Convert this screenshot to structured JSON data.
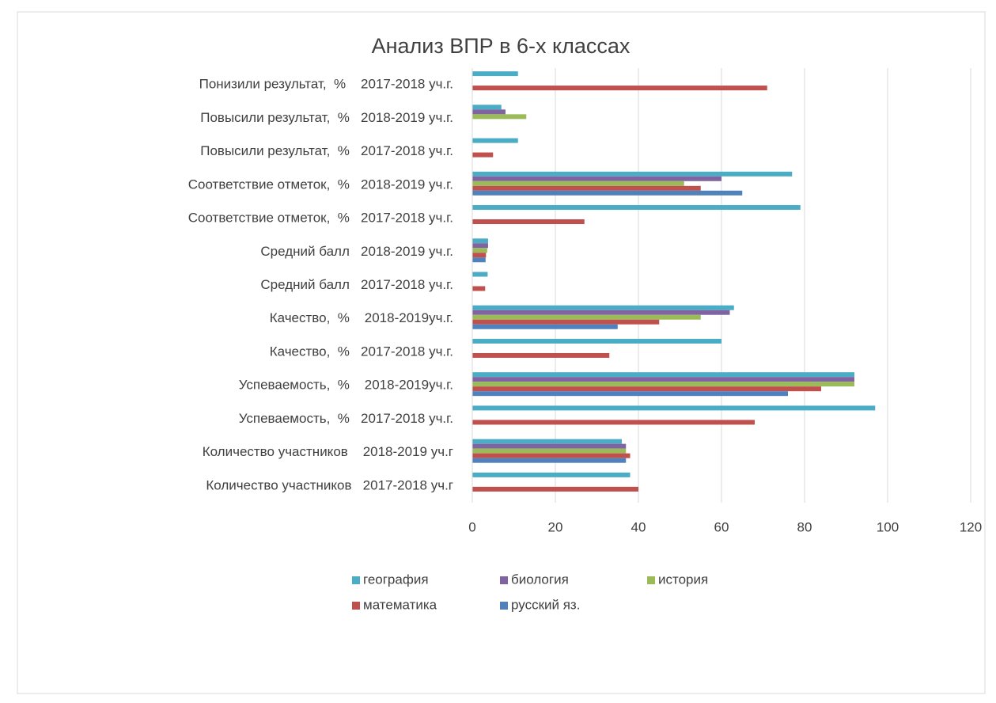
{
  "chart_data": {
    "type": "bar",
    "orientation": "horizontal",
    "title": "Анализ ВПР в 6-х классах",
    "categories": [
      "Понизили результат,  %    2017-2018 уч.г.",
      "Повысили результат,  %   2018-2019 уч.г.",
      "Повысили результат,  %   2017-2018 уч.г.",
      "Соответствие отметок,  %   2018-2019 уч.г.",
      "Соответствие отметок,  %   2017-2018 уч.г.",
      "Средний балл   2018-2019 уч.г.",
      "Средний балл   2017-2018 уч.г.",
      "Качество,  %    2018-2019уч.г.",
      "Качество,  %   2017-2018 уч.г.",
      "Успеваемость,  %    2018-2019уч.г.",
      "Успеваемость,  %   2017-2018 уч.г.",
      "Количество участников    2018-2019 уч.г",
      "Количество участников   2017-2018 уч.г"
    ],
    "series": [
      {
        "name": "география",
        "color": "#4bacc6",
        "values": [
          11,
          7,
          11,
          77,
          79,
          3.8,
          3.7,
          63,
          60,
          92,
          97,
          36,
          38
        ]
      },
      {
        "name": "биология",
        "color": "#8064a2",
        "values": [
          null,
          8,
          null,
          60,
          null,
          3.8,
          null,
          62,
          null,
          92,
          null,
          37,
          null
        ]
      },
      {
        "name": "история",
        "color": "#9bbb59",
        "values": [
          null,
          13,
          null,
          51,
          null,
          3.6,
          null,
          55,
          null,
          92,
          null,
          37,
          null
        ]
      },
      {
        "name": "математика",
        "color": "#c0504d",
        "values": [
          71,
          null,
          5,
          55,
          27,
          3.3,
          3.1,
          45,
          33,
          84,
          68,
          38,
          40
        ]
      },
      {
        "name": "русский яз.",
        "color": "#4f81bd",
        "values": [
          null,
          null,
          null,
          65,
          null,
          3.2,
          null,
          35,
          null,
          76,
          null,
          37,
          null
        ]
      }
    ],
    "xlim": [
      0,
      120
    ],
    "xticks": [
      0,
      20,
      40,
      60,
      80,
      100,
      120
    ],
    "grid": true,
    "legend": "bottom"
  }
}
